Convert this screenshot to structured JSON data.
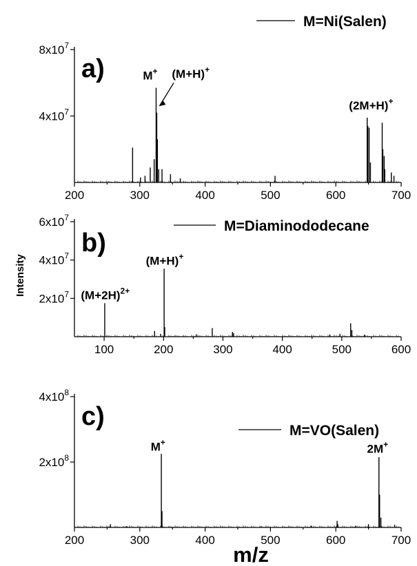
{
  "ylabel": "Intensity",
  "xlabel": "m/z",
  "chart_data": [
    {
      "type": "line",
      "panel_label": "a)",
      "legend": "M=Ni(Salen)",
      "xlim": [
        200,
        700
      ],
      "ylim": [
        0,
        80000000
      ],
      "xticks": [
        200,
        300,
        400,
        500,
        600,
        700
      ],
      "ytick_labels": [
        {
          "value": 40000000,
          "mantissa": "4x10",
          "exp": "7"
        },
        {
          "value": 80000000,
          "mantissa": "8x10",
          "exp": "7"
        }
      ],
      "peaks": [
        {
          "x": 289,
          "y": 21000000
        },
        {
          "x": 301,
          "y": 3000000
        },
        {
          "x": 308,
          "y": 4000000
        },
        {
          "x": 316,
          "y": 9000000
        },
        {
          "x": 322,
          "y": 14000000
        },
        {
          "x": 325,
          "y": 57000000
        },
        {
          "x": 326,
          "y": 42000000
        },
        {
          "x": 327,
          "y": 26000000
        },
        {
          "x": 329,
          "y": 8000000
        },
        {
          "x": 334,
          "y": 8000000
        },
        {
          "x": 347,
          "y": 5000000
        },
        {
          "x": 362,
          "y": 2500000
        },
        {
          "x": 507,
          "y": 4000000
        },
        {
          "x": 648,
          "y": 39000000
        },
        {
          "x": 649,
          "y": 34000000
        },
        {
          "x": 651,
          "y": 33000000
        },
        {
          "x": 653,
          "y": 12000000
        },
        {
          "x": 671,
          "y": 36000000
        },
        {
          "x": 672,
          "y": 20000000
        },
        {
          "x": 674,
          "y": 16000000
        },
        {
          "x": 675,
          "y": 8000000
        },
        {
          "x": 685,
          "y": 6000000
        },
        {
          "x": 689,
          "y": 4000000
        }
      ],
      "annotations": [
        {
          "base": "M",
          "sup": "+",
          "x": 316,
          "y": 62000000
        },
        {
          "base": "(M+H)",
          "sup": "+",
          "x": 378,
          "y": 63000000
        },
        {
          "base": "(2M+H)",
          "sup": "+",
          "x": 654,
          "y": 44000000
        }
      ]
    },
    {
      "type": "line",
      "panel_label": "b)",
      "legend": "M=Diaminododecane",
      "xlim": [
        50,
        600
      ],
      "ylim": [
        0,
        60000000
      ],
      "xticks": [
        100,
        200,
        300,
        400,
        500,
        600
      ],
      "ytick_labels": [
        {
          "value": 20000000,
          "mantissa": "2x10",
          "exp": "7"
        },
        {
          "value": 40000000,
          "mantissa": "4x10",
          "exp": "7"
        },
        {
          "value": 60000000,
          "mantissa": "6x10",
          "exp": "7"
        }
      ],
      "peaks": [
        {
          "x": 101,
          "y": 17500000
        },
        {
          "x": 185,
          "y": 3000000
        },
        {
          "x": 195,
          "y": 1500000
        },
        {
          "x": 201,
          "y": 35500000
        },
        {
          "x": 202,
          "y": 5000000
        },
        {
          "x": 255,
          "y": 1200000
        },
        {
          "x": 282,
          "y": 4500000
        },
        {
          "x": 316,
          "y": 2500000
        },
        {
          "x": 318,
          "y": 1800000
        },
        {
          "x": 480,
          "y": 1200000
        },
        {
          "x": 497,
          "y": 1500000
        },
        {
          "x": 515,
          "y": 7000000
        },
        {
          "x": 517,
          "y": 3500000
        },
        {
          "x": 538,
          "y": 1000000
        }
      ],
      "annotations": [
        {
          "base": "(M+2H)",
          "sup": "2+",
          "x": 102,
          "y": 19500000
        },
        {
          "base": "(M+H)",
          "sup": "+",
          "x": 202,
          "y": 37500000
        }
      ]
    },
    {
      "type": "line",
      "panel_label": "c)",
      "legend": "M=VO(Salen)",
      "xlim": [
        200,
        700
      ],
      "ylim": [
        0,
        400000000
      ],
      "xticks": [
        200,
        300,
        400,
        500,
        600,
        700
      ],
      "ytick_labels": [
        {
          "value": 200000000,
          "mantissa": "2x10",
          "exp": "8"
        },
        {
          "value": 400000000,
          "mantissa": "4x10",
          "exp": "8"
        }
      ],
      "peaks": [
        {
          "x": 255,
          "y": 10000000
        },
        {
          "x": 280,
          "y": 4000000
        },
        {
          "x": 333,
          "y": 225000000
        },
        {
          "x": 334,
          "y": 50000000
        },
        {
          "x": 486,
          "y": 3000000
        },
        {
          "x": 562,
          "y": 5000000
        },
        {
          "x": 602,
          "y": 20000000
        },
        {
          "x": 603,
          "y": 10000000
        },
        {
          "x": 630,
          "y": 5000000
        },
        {
          "x": 650,
          "y": 10000000
        },
        {
          "x": 666,
          "y": 215000000
        },
        {
          "x": 667,
          "y": 100000000
        },
        {
          "x": 669,
          "y": 30000000
        },
        {
          "x": 690,
          "y": 8000000
        }
      ],
      "annotations": [
        {
          "base": "M",
          "sup": "+",
          "x": 328,
          "y": 235000000
        },
        {
          "base": "2M",
          "sup": "+",
          "x": 664,
          "y": 228000000
        }
      ]
    }
  ]
}
